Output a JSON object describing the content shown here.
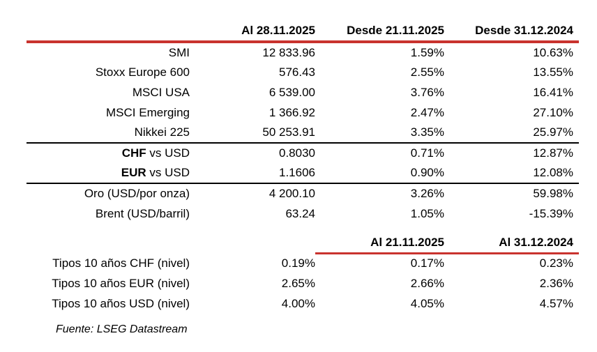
{
  "colors": {
    "accent_red": "#C9332E",
    "rule_black": "#000000",
    "text": "#000000",
    "background": "#FFFFFF"
  },
  "header_row_1": {
    "col2": "Al 28.11.2025",
    "col3": "Desde 21.11.2025",
    "col4": "Desde 31.12.2024"
  },
  "sections": {
    "indices": [
      {
        "label": "SMI",
        "level": "12 833.96",
        "chg_week": "1.59%",
        "chg_ytd": "10.63%"
      },
      {
        "label": "Stoxx Europe 600",
        "level": "576.43",
        "chg_week": "2.55%",
        "chg_ytd": "13.55%"
      },
      {
        "label": "MSCI USA",
        "level": "6 539.00",
        "chg_week": "3.76%",
        "chg_ytd": "16.41%"
      },
      {
        "label": "MSCI Emerging",
        "level": "1 366.92",
        "chg_week": "2.47%",
        "chg_ytd": "27.10%"
      },
      {
        "label": "Nikkei 225",
        "level": "50 253.91",
        "chg_week": "3.35%",
        "chg_ytd": "25.97%"
      }
    ],
    "fx": [
      {
        "label_bold": "CHF",
        "label_rest": " vs USD",
        "level": "0.8030",
        "chg_week": "0.71%",
        "chg_ytd": "12.87%"
      },
      {
        "label_bold": "EUR",
        "label_rest": " vs USD",
        "level": "1.1606",
        "chg_week": "0.90%",
        "chg_ytd": "12.08%"
      }
    ],
    "commodities": [
      {
        "label": "Oro (USD/por onza)",
        "level": "4 200.10",
        "chg_week": "3.26%",
        "chg_ytd": "59.98%"
      },
      {
        "label": "Brent (USD/barril)",
        "level": "63.24",
        "chg_week": "1.05%",
        "chg_ytd": "-15.39%"
      }
    ]
  },
  "header_row_2": {
    "col3": "Al 21.11.2025",
    "col4": "Al 31.12.2024"
  },
  "rates": [
    {
      "label": "Tipos 10 años CHF (nivel)",
      "level": "0.19%",
      "prev_week": "0.17%",
      "prev_year": "0.23%"
    },
    {
      "label": "Tipos 10 años EUR (nivel)",
      "level": "2.65%",
      "prev_week": "2.66%",
      "prev_year": "2.36%"
    },
    {
      "label": "Tipos 10 años USD (nivel)",
      "level": "4.00%",
      "prev_week": "4.05%",
      "prev_year": "4.57%"
    }
  ],
  "footer": {
    "source": "Fuente: LSEG Datastream"
  }
}
